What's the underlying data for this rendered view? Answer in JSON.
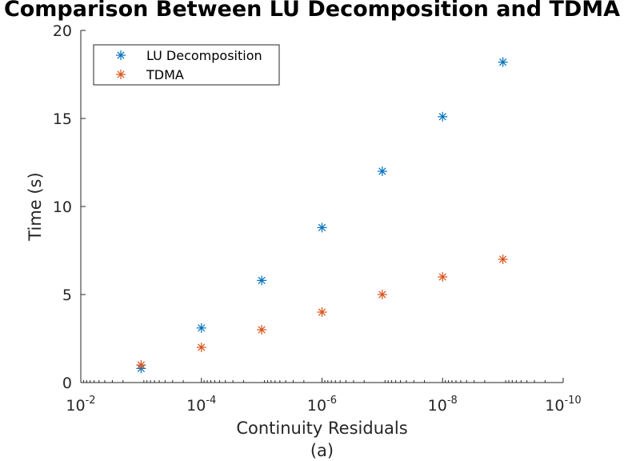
{
  "chart_data": {
    "type": "scatter",
    "title": "Comparison Between LU Decomposition and TDMA",
    "xlabel": "Continuity Residuals",
    "ylabel": "Time (s)",
    "caption": "(a)",
    "x_scale": "log",
    "x_direction": "reversed",
    "xlim": [
      0.01,
      1e-10
    ],
    "ylim": [
      0,
      20
    ],
    "x_ticks": [
      {
        "value": 0.01,
        "base": "10",
        "exp": "-2"
      },
      {
        "value": 0.0001,
        "base": "10",
        "exp": "-4"
      },
      {
        "value": 1e-06,
        "base": "10",
        "exp": "-6"
      },
      {
        "value": 1e-08,
        "base": "10",
        "exp": "-8"
      },
      {
        "value": 1e-10,
        "base": "10",
        "exp": "-10"
      }
    ],
    "y_ticks": [
      0,
      5,
      10,
      15,
      20
    ],
    "grid": false,
    "legend_position": "top-left",
    "series": [
      {
        "name": "LU Decomposition",
        "color": "#0072BD",
        "marker": "*",
        "x": [
          0.001,
          0.0001,
          1e-05,
          1e-06,
          1e-07,
          1e-08,
          1e-09
        ],
        "y": [
          0.8,
          3.1,
          5.8,
          8.8,
          12.0,
          15.1,
          18.2
        ]
      },
      {
        "name": "TDMA",
        "color": "#D95319",
        "marker": "*",
        "x": [
          0.001,
          0.0001,
          1e-05,
          1e-06,
          1e-07,
          1e-08,
          1e-09
        ],
        "y": [
          1.0,
          2.0,
          3.0,
          4.0,
          5.0,
          6.0,
          7.0
        ]
      }
    ]
  }
}
